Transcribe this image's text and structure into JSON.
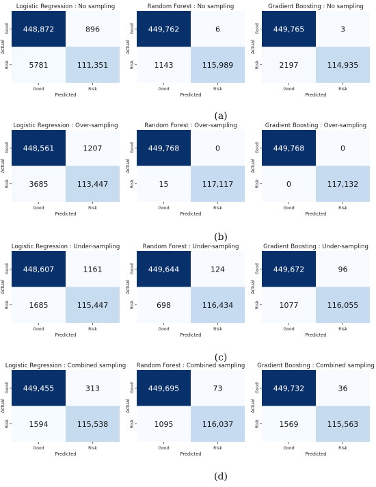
{
  "figure": {
    "axis_labels": {
      "x": "Predicted",
      "y": "Actual"
    },
    "class_labels": [
      "Good",
      "Risk"
    ],
    "colors": {
      "high": "#08306b",
      "mid": "#c6dbef",
      "low": "#f7fbff",
      "text_dark": "#111111",
      "text_light": "#ffffff"
    },
    "rows": [
      {
        "panel_label": "(a)",
        "sampling": "No sampling"
      },
      {
        "panel_label": "(b)",
        "sampling": "Over-sampling"
      },
      {
        "panel_label": "(c)",
        "sampling": "Under-sampling"
      },
      {
        "panel_label": "(d)",
        "sampling": "Combined sampling"
      }
    ]
  },
  "chart_data": [
    {
      "type": "heatmap",
      "title": "Logistic Regression : No sampling",
      "xlabel": "Predicted",
      "ylabel": "Actual",
      "x_categories": [
        "Good",
        "Risk"
      ],
      "y_categories": [
        "Good",
        "Risk"
      ],
      "values": [
        [
          448872,
          896
        ],
        [
          5781,
          111351
        ]
      ],
      "value_labels": [
        [
          "448,872",
          "896"
        ],
        [
          "5781",
          "111,351"
        ]
      ]
    },
    {
      "type": "heatmap",
      "title": "Random Forest : No sampling",
      "xlabel": "Predicted",
      "ylabel": "Actual",
      "x_categories": [
        "Good",
        "Risk"
      ],
      "y_categories": [
        "Good",
        "Risk"
      ],
      "values": [
        [
          449762,
          6
        ],
        [
          1143,
          115989
        ]
      ],
      "value_labels": [
        [
          "449,762",
          "6"
        ],
        [
          "1143",
          "115,989"
        ]
      ]
    },
    {
      "type": "heatmap",
      "title": "Gradient Boosting : No sampling",
      "xlabel": "Predicted",
      "ylabel": "Actual",
      "x_categories": [
        "Good",
        "Risk"
      ],
      "y_categories": [
        "Good",
        "Risk"
      ],
      "values": [
        [
          449765,
          3
        ],
        [
          2197,
          114935
        ]
      ],
      "value_labels": [
        [
          "449,765",
          "3"
        ],
        [
          "2197",
          "114,935"
        ]
      ]
    },
    {
      "type": "heatmap",
      "title": "Logistic Regression : Over-sampling",
      "xlabel": "Predicted",
      "ylabel": "Actual",
      "x_categories": [
        "Good",
        "Risk"
      ],
      "y_categories": [
        "Good",
        "Risk"
      ],
      "values": [
        [
          448561,
          1207
        ],
        [
          3685,
          113447
        ]
      ],
      "value_labels": [
        [
          "448,561",
          "1207"
        ],
        [
          "3685",
          "113,447"
        ]
      ]
    },
    {
      "type": "heatmap",
      "title": "Random Forest : Over-sampling",
      "xlabel": "Predicted",
      "ylabel": "Actual",
      "x_categories": [
        "Good",
        "Risk"
      ],
      "y_categories": [
        "Good",
        "Risk"
      ],
      "values": [
        [
          449768,
          0
        ],
        [
          15,
          117117
        ]
      ],
      "value_labels": [
        [
          "449,768",
          "0"
        ],
        [
          "15",
          "117,117"
        ]
      ]
    },
    {
      "type": "heatmap",
      "title": "Gradient Boosting : Over-sampling",
      "xlabel": "Predicted",
      "ylabel": "Actual",
      "x_categories": [
        "Good",
        "Risk"
      ],
      "y_categories": [
        "Good",
        "Risk"
      ],
      "values": [
        [
          449768,
          0
        ],
        [
          0,
          117132
        ]
      ],
      "value_labels": [
        [
          "449,768",
          "0"
        ],
        [
          "0",
          "117,132"
        ]
      ]
    },
    {
      "type": "heatmap",
      "title": "Logistic Regression : Under-sampling",
      "xlabel": "Predicted",
      "ylabel": "Actual",
      "x_categories": [
        "Good",
        "Risk"
      ],
      "y_categories": [
        "Good",
        "Risk"
      ],
      "values": [
        [
          448607,
          1161
        ],
        [
          1685,
          115447
        ]
      ],
      "value_labels": [
        [
          "448,607",
          "1161"
        ],
        [
          "1685",
          "115,447"
        ]
      ]
    },
    {
      "type": "heatmap",
      "title": "Random Forest : Under-sampling",
      "xlabel": "Predicted",
      "ylabel": "Actual",
      "x_categories": [
        "Good",
        "Risk"
      ],
      "y_categories": [
        "Good",
        "Risk"
      ],
      "values": [
        [
          449644,
          124
        ],
        [
          698,
          116434
        ]
      ],
      "value_labels": [
        [
          "449,644",
          "124"
        ],
        [
          "698",
          "116,434"
        ]
      ]
    },
    {
      "type": "heatmap",
      "title": "Gradient Boosting : Under-sampling",
      "xlabel": "Predicted",
      "ylabel": "Actual",
      "x_categories": [
        "Good",
        "Risk"
      ],
      "y_categories": [
        "Good",
        "Risk"
      ],
      "values": [
        [
          449672,
          96
        ],
        [
          1077,
          116055
        ]
      ],
      "value_labels": [
        [
          "449,672",
          "96"
        ],
        [
          "1077",
          "116,055"
        ]
      ]
    },
    {
      "type": "heatmap",
      "title": "Logistic Regression : Combined sampling",
      "xlabel": "Predicted",
      "ylabel": "Actual",
      "x_categories": [
        "Good",
        "Risk"
      ],
      "y_categories": [
        "Good",
        "Risk"
      ],
      "values": [
        [
          449455,
          313
        ],
        [
          1594,
          115538
        ]
      ],
      "value_labels": [
        [
          "449,455",
          "313"
        ],
        [
          "1594",
          "115,538"
        ]
      ]
    },
    {
      "type": "heatmap",
      "title": "Random Forest : Combined sampling",
      "xlabel": "Predicted",
      "ylabel": "Actual",
      "x_categories": [
        "Good",
        "Risk"
      ],
      "y_categories": [
        "Good",
        "Risk"
      ],
      "values": [
        [
          449695,
          73
        ],
        [
          1095,
          116037
        ]
      ],
      "value_labels": [
        [
          "449,695",
          "73"
        ],
        [
          "1095",
          "116,037"
        ]
      ]
    },
    {
      "type": "heatmap",
      "title": "Gradient Boosting : Combined sampling",
      "xlabel": "Predicted",
      "ylabel": "Actual",
      "x_categories": [
        "Good",
        "Risk"
      ],
      "y_categories": [
        "Good",
        "Risk"
      ],
      "values": [
        [
          449732,
          36
        ],
        [
          1569,
          115563
        ]
      ],
      "value_labels": [
        [
          "449,732",
          "36"
        ],
        [
          "1569",
          "115,563"
        ]
      ]
    }
  ]
}
